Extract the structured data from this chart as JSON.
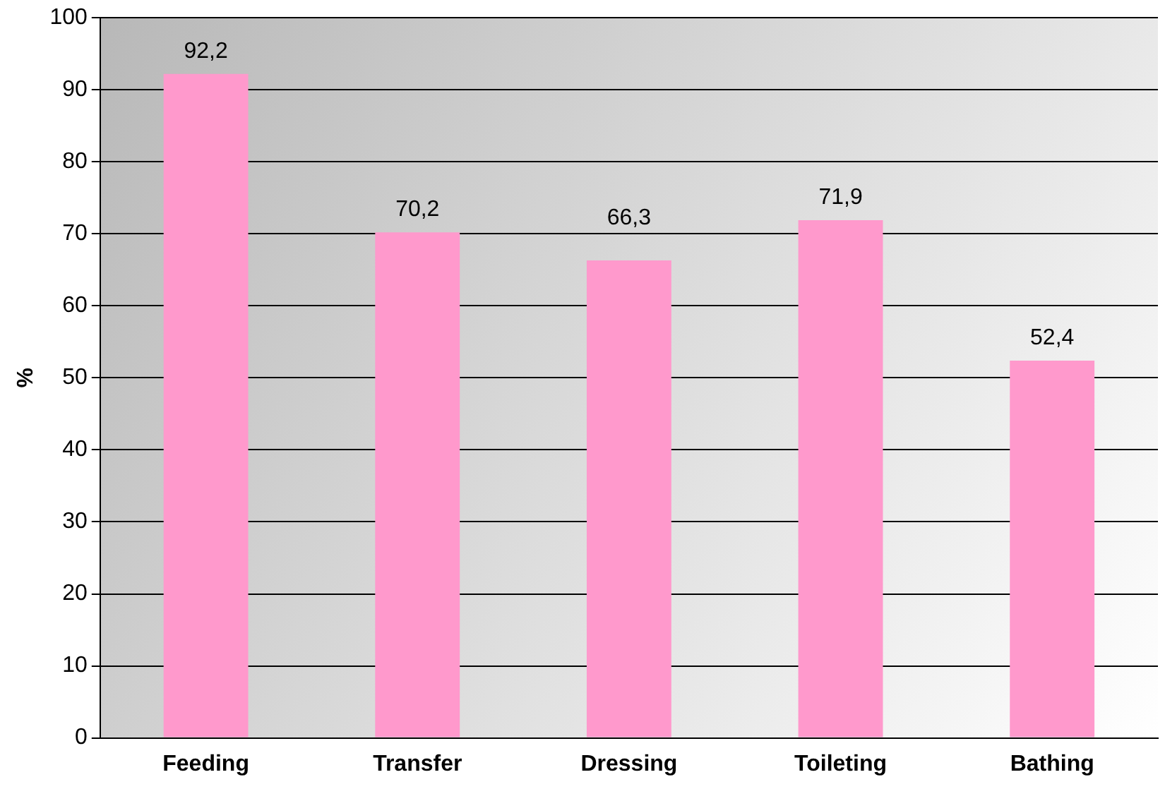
{
  "chart_data": {
    "type": "bar",
    "ylabel": "%",
    "categories": [
      "Feeding",
      "Transfer",
      "Dressing",
      "Toileting",
      "Bathing"
    ],
    "values": [
      92.2,
      70.2,
      66.3,
      71.9,
      52.4
    ],
    "value_labels": [
      "92,2",
      "70,2",
      "66,3",
      "71,9",
      "52,4"
    ],
    "color": "#ff99cc",
    "ylim": [
      0,
      100
    ],
    "yticks": [
      0,
      10,
      20,
      30,
      40,
      50,
      60,
      70,
      80,
      90,
      100
    ],
    "grid": "y",
    "legend": false
  }
}
